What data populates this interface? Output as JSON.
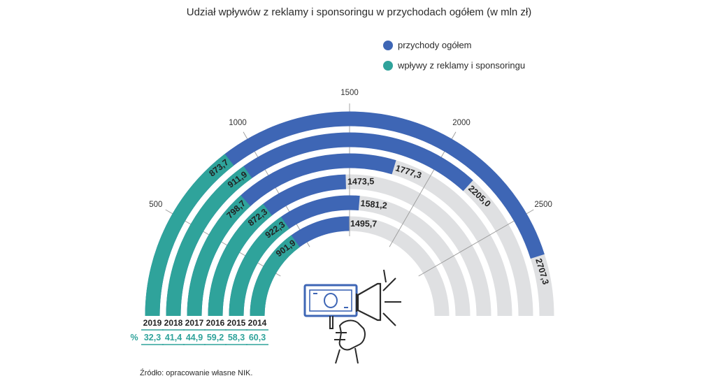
{
  "title": "Udział wpływów z reklamy i sponsoringu w przychodach ogółem (w mln zł)",
  "legend": [
    {
      "label": "przychody ogółem",
      "color": "#3e66b5"
    },
    {
      "label": "wpływy z reklamy i sponsoringu",
      "color": "#2fa39b"
    }
  ],
  "source": "Źródło: opracowanie własne NIK.",
  "percent_symbol": "%",
  "colors": {
    "total": "#3e66b5",
    "ads": "#2fa39b",
    "track": "#dfe0e2",
    "grid": "#9a9a9a"
  },
  "chart_data": {
    "type": "radial-bar",
    "title": "Udział wpływów z reklamy i sponsoringu w przychodach ogółem (w mln zł)",
    "axis": {
      "min": 0,
      "max": 3000,
      "ticks": [
        "500",
        "1000",
        "1500",
        "2000",
        "2500"
      ],
      "tick_values": [
        500,
        1000,
        1500,
        2000,
        2500
      ]
    },
    "categories": [
      "2019",
      "2018",
      "2017",
      "2016",
      "2015",
      "2014"
    ],
    "series": [
      {
        "name": "przychody ogółem",
        "values": [
          2707.3,
          2205.0,
          1777.3,
          1473.5,
          1581.2,
          1495.7
        ],
        "labels": [
          "2707,3",
          "2205,0",
          "1777,3",
          "1473,5",
          "1581,2",
          "1495,7"
        ]
      },
      {
        "name": "wpływy z reklamy i sponsoringu",
        "values": [
          873.7,
          911.9,
          798.7,
          872.3,
          922.3,
          901.9
        ],
        "labels": [
          "873,7",
          "911,9",
          "798,7",
          "872,3",
          "922,3",
          "901,9"
        ]
      }
    ],
    "percent": {
      "values": [
        32.3,
        41.4,
        44.9,
        59.2,
        58.3,
        60.3
      ],
      "labels": [
        "32,3",
        "41,4",
        "44,9",
        "59,2",
        "58,3",
        "60,3"
      ]
    }
  }
}
